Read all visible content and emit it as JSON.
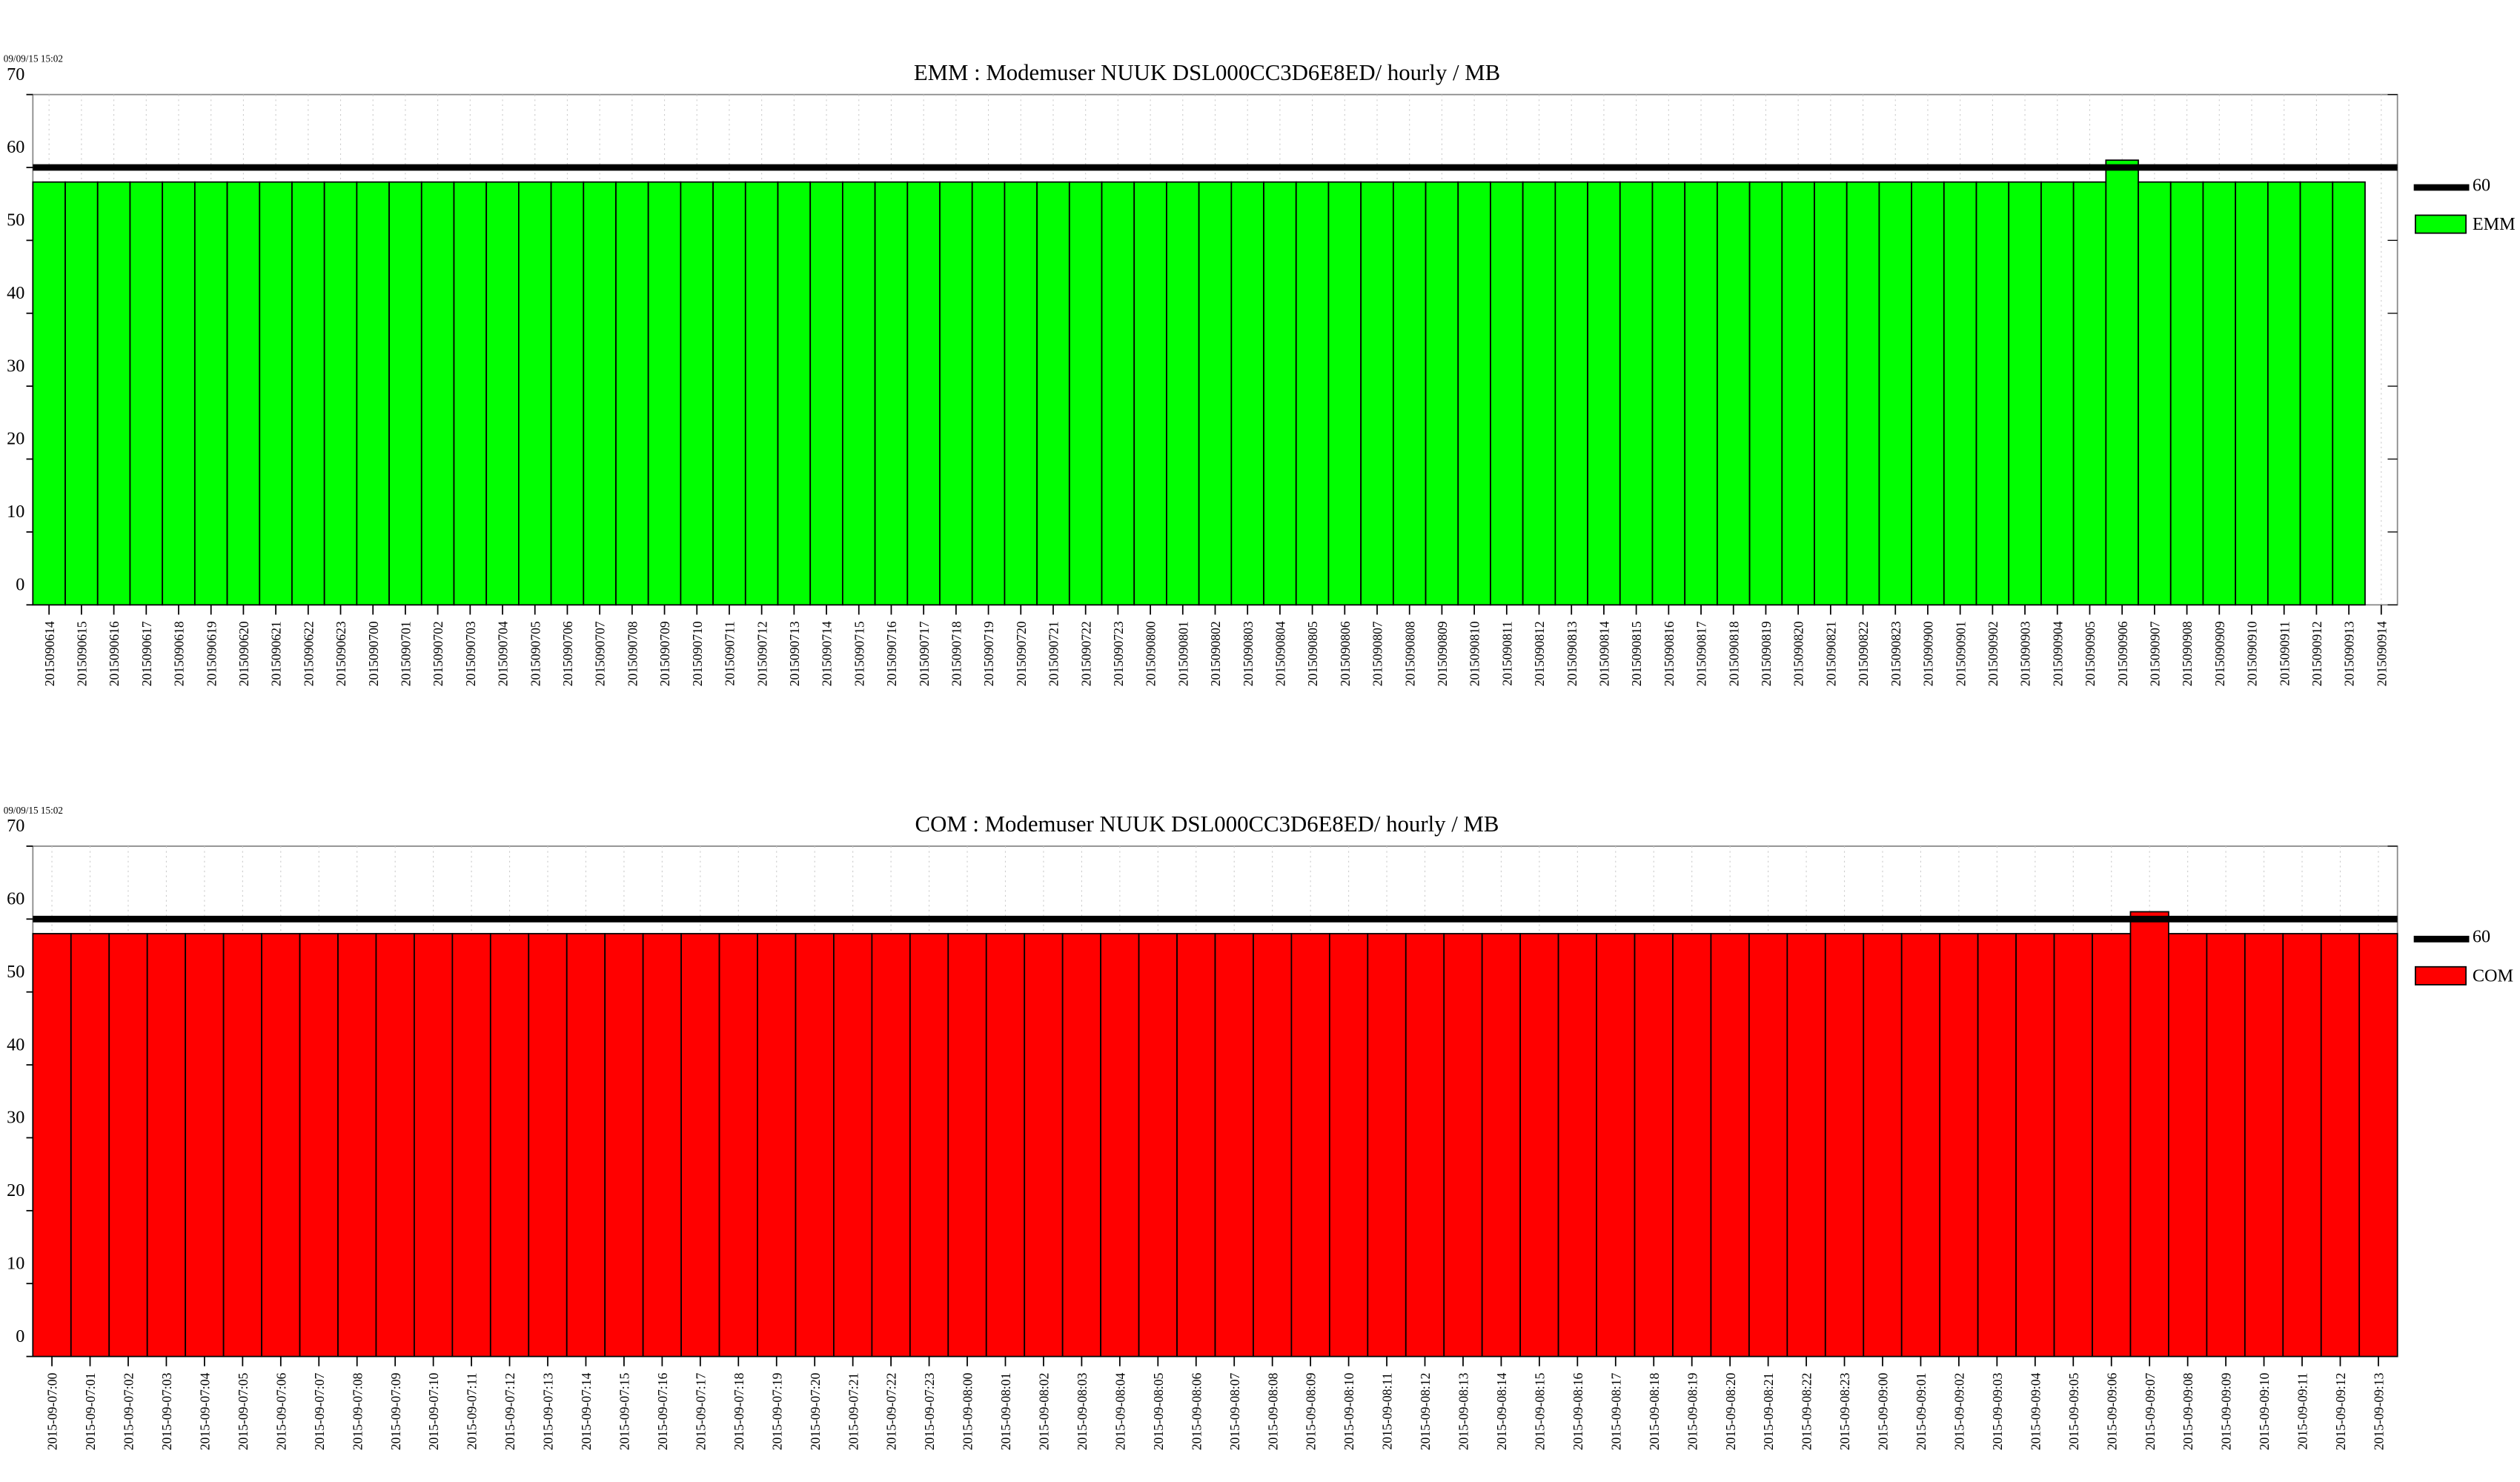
{
  "chart_data": [
    {
      "type": "bar",
      "timestamp": "09/09/15 15:02",
      "title": "EMM :  Modemuser NUUK DSL000CC3D6E8ED/ hourly / MB",
      "categories": [
        "2015090614",
        "2015090615",
        "2015090616",
        "2015090617",
        "2015090618",
        "2015090619",
        "2015090620",
        "2015090621",
        "2015090622",
        "2015090623",
        "2015090700",
        "2015090701",
        "2015090702",
        "2015090703",
        "2015090704",
        "2015090705",
        "2015090706",
        "2015090707",
        "2015090708",
        "2015090709",
        "2015090710",
        "2015090711",
        "2015090712",
        "2015090713",
        "2015090714",
        "2015090715",
        "2015090716",
        "2015090717",
        "2015090718",
        "2015090719",
        "2015090720",
        "2015090721",
        "2015090722",
        "2015090723",
        "2015090800",
        "2015090801",
        "2015090802",
        "2015090803",
        "2015090804",
        "2015090805",
        "2015090806",
        "2015090807",
        "2015090808",
        "2015090809",
        "2015090810",
        "2015090811",
        "2015090812",
        "2015090813",
        "2015090814",
        "2015090815",
        "2015090816",
        "2015090817",
        "2015090818",
        "2015090819",
        "2015090820",
        "2015090821",
        "2015090822",
        "2015090823",
        "2015090900",
        "2015090901",
        "2015090902",
        "2015090903",
        "2015090904",
        "2015090905",
        "2015090906",
        "2015090907",
        "2015090908",
        "2015090909",
        "2015090910",
        "2015090911",
        "2015090912",
        "2015090913",
        "2015090914"
      ],
      "series": [
        {
          "name": "EMM",
          "color": "#00ff00",
          "values": [
            58,
            58,
            58,
            58,
            58,
            58,
            58,
            58,
            58,
            58,
            58,
            58,
            58,
            58,
            58,
            58,
            58,
            58,
            58,
            58,
            58,
            58,
            58,
            58,
            58,
            58,
            58,
            58,
            58,
            58,
            58,
            58,
            58,
            58,
            58,
            58,
            58,
            58,
            58,
            58,
            58,
            58,
            58,
            58,
            58,
            58,
            58,
            58,
            58,
            58,
            58,
            58,
            58,
            58,
            58,
            58,
            58,
            58,
            58,
            58,
            58,
            58,
            58,
            58,
            61,
            58,
            58,
            58,
            58,
            58,
            58,
            58,
            null
          ]
        }
      ],
      "threshold": 60,
      "ylim": [
        0,
        70
      ],
      "yticks": [
        0,
        10,
        20,
        30,
        40,
        50,
        60,
        70
      ],
      "grid": true
    },
    {
      "type": "bar",
      "timestamp": "09/09/15 15:02",
      "title": "COM : Modemuser NUUK DSL000CC3D6E8ED/ hourly / MB",
      "categories": [
        "2015-09-07:00",
        "2015-09-07:01",
        "2015-09-07:02",
        "2015-09-07:03",
        "2015-09-07:04",
        "2015-09-07:05",
        "2015-09-07:06",
        "2015-09-07:07",
        "2015-09-07:08",
        "2015-09-07:09",
        "2015-09-07:10",
        "2015-09-07:11",
        "2015-09-07:12",
        "2015-09-07:13",
        "2015-09-07:14",
        "2015-09-07:15",
        "2015-09-07:16",
        "2015-09-07:17",
        "2015-09-07:18",
        "2015-09-07:19",
        "2015-09-07:20",
        "2015-09-07:21",
        "2015-09-07:22",
        "2015-09-07:23",
        "2015-09-08:00",
        "2015-09-08:01",
        "2015-09-08:02",
        "2015-09-08:03",
        "2015-09-08:04",
        "2015-09-08:05",
        "2015-09-08:06",
        "2015-09-08:07",
        "2015-09-08:08",
        "2015-09-08:09",
        "2015-09-08:10",
        "2015-09-08:11",
        "2015-09-08:12",
        "2015-09-08:13",
        "2015-09-08:14",
        "2015-09-08:15",
        "2015-09-08:16",
        "2015-09-08:17",
        "2015-09-08:18",
        "2015-09-08:19",
        "2015-09-08:20",
        "2015-09-08:21",
        "2015-09-08:22",
        "2015-09-08:23",
        "2015-09-09:00",
        "2015-09-09:01",
        "2015-09-09:02",
        "2015-09-09:03",
        "2015-09-09:04",
        "2015-09-09:05",
        "2015-09-09:06",
        "2015-09-09:07",
        "2015-09-09:08",
        "2015-09-09:09",
        "2015-09-09:10",
        "2015-09-09:11",
        "2015-09-09:12",
        "2015-09-09:13"
      ],
      "series": [
        {
          "name": "COM",
          "color": "#ff0000",
          "values": [
            58,
            58,
            58,
            58,
            58,
            58,
            58,
            58,
            58,
            58,
            58,
            58,
            58,
            58,
            58,
            58,
            58,
            58,
            58,
            58,
            58,
            58,
            58,
            58,
            58,
            58,
            58,
            58,
            58,
            58,
            58,
            58,
            58,
            58,
            58,
            58,
            58,
            58,
            58,
            58,
            58,
            58,
            58,
            58,
            58,
            58,
            58,
            58,
            58,
            58,
            58,
            58,
            58,
            58,
            58,
            61,
            58,
            58,
            58,
            58,
            58,
            58
          ]
        }
      ],
      "threshold": 60,
      "ylim": [
        0,
        70
      ],
      "yticks": [
        0,
        10,
        20,
        30,
        40,
        50,
        60,
        70
      ],
      "grid": true
    }
  ]
}
